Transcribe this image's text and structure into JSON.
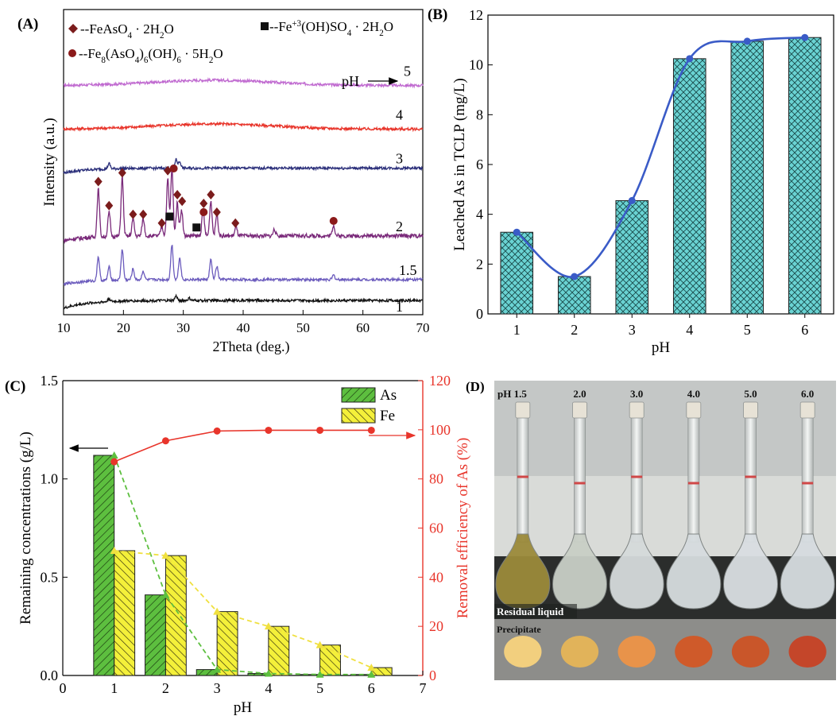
{
  "chart_data": [
    {
      "panel": "(A)",
      "type": "line",
      "title": "",
      "xlabel": "2Theta (deg.)",
      "ylabel": "Intensity (a.u.)",
      "xlim": [
        10,
        70
      ],
      "xticks": [
        10,
        20,
        30,
        40,
        50,
        60,
        70
      ],
      "legend": [
        {
          "marker": "diamond",
          "color": "#7b1c1c",
          "text": "--FeAsO",
          "sub": "4",
          "tail": " · 2H",
          "sub2": "2",
          "tail2": "O"
        },
        {
          "marker": "square",
          "color": "#111111",
          "text": "--Fe",
          "sup": "+3",
          "tail": "(OH)SO",
          "sub": "4",
          "tail2": " · 2H",
          "sub2": "2",
          "tail3": "O"
        },
        {
          "marker": "circle",
          "color": "#8b1a1a",
          "text": "--Fe",
          "sub": "8",
          "tail": "(AsO",
          "sub2": "4",
          "tail2": ")",
          "sub3": "6",
          "tail3": "(OH)",
          "sub4": "6",
          "tail4": " · 5H",
          "sub5": "2",
          "tail5": "O"
        }
      ],
      "arrow_label": "pH",
      "series": [
        {
          "name": "5",
          "color": "#c06ad0",
          "offset": 5.1,
          "peaks": []
        },
        {
          "name": "4",
          "color": "#e8352b",
          "offset": 4.1,
          "peaks": []
        },
        {
          "name": "3",
          "color": "#2b2f7a",
          "offset": 3.1,
          "peaks": [
            [
              17.6,
              0.12
            ],
            [
              28.8,
              0.2
            ],
            [
              29.4,
              0.15
            ]
          ]
        },
        {
          "name": "2",
          "color": "#7a2a7a",
          "offset": 1.55,
          "peaks": [
            [
              15.8,
              1.1
            ],
            [
              17.6,
              0.55
            ],
            [
              19.8,
              1.35
            ],
            [
              21.6,
              0.4
            ],
            [
              23.3,
              0.4
            ],
            [
              26.4,
              0.22
            ],
            [
              27.4,
              1.3
            ],
            [
              28.1,
              1.55
            ],
            [
              29.0,
              0.75
            ],
            [
              29.7,
              0.6
            ],
            [
              33.3,
              0.6
            ],
            [
              34.6,
              0.8
            ],
            [
              35.6,
              0.5
            ],
            [
              38.8,
              0.2
            ],
            [
              45.2,
              0.15
            ],
            [
              55.1,
              0.25
            ]
          ]
        },
        {
          "name": "1.5",
          "color": "#6b5bbd",
          "offset": 0.55,
          "peaks": [
            [
              15.8,
              0.55
            ],
            [
              17.6,
              0.3
            ],
            [
              19.8,
              0.7
            ],
            [
              21.6,
              0.25
            ],
            [
              23.3,
              0.2
            ],
            [
              28.1,
              0.8
            ],
            [
              29.4,
              0.5
            ],
            [
              34.6,
              0.45
            ],
            [
              35.6,
              0.3
            ],
            [
              55.1,
              0.1
            ]
          ]
        },
        {
          "name": "1",
          "color": "#111111",
          "offset": 0.0,
          "peaks": [
            [
              17.6,
              0.07
            ],
            [
              28.8,
              0.1
            ],
            [
              31.0,
              0.05
            ]
          ]
        }
      ],
      "annotations": {
        "diamonds": [
          [
            15.8,
            2.9
          ],
          [
            17.6,
            2.35
          ],
          [
            19.8,
            3.1
          ],
          [
            21.6,
            2.15
          ],
          [
            23.3,
            2.15
          ],
          [
            26.4,
            1.95
          ],
          [
            27.4,
            3.15
          ],
          [
            29.0,
            2.6
          ],
          [
            29.8,
            2.45
          ],
          [
            33.4,
            2.4
          ],
          [
            34.6,
            2.6
          ],
          [
            35.6,
            2.2
          ],
          [
            38.7,
            1.95
          ]
        ],
        "circles": [
          [
            28.4,
            3.2
          ],
          [
            33.4,
            2.2
          ],
          [
            55.1,
            2.0
          ]
        ],
        "squares": [
          [
            27.7,
            2.1
          ],
          [
            32.2,
            1.85
          ]
        ]
      }
    },
    {
      "panel": "(B)",
      "type": "bar",
      "title": "",
      "xlabel": "pH",
      "ylabel": "Leached As in TCLP (mg/L)",
      "categories": [
        "1",
        "2",
        "3",
        "4",
        "5",
        "6"
      ],
      "values": [
        3.28,
        1.5,
        4.55,
        10.25,
        10.95,
        11.1
      ],
      "ylim": [
        0,
        12
      ],
      "yticks": [
        0,
        2,
        4,
        6,
        8,
        10,
        12
      ],
      "bar_color": "#6ad3d3",
      "line_color": "#3a5bc7"
    },
    {
      "panel": "(C)",
      "type": "bar",
      "title": "",
      "xlabel": "pH",
      "ylabel": "Remaining concentrations (g/L)",
      "y2label": "Removal efficiency of As (%)",
      "xlim": [
        0,
        7
      ],
      "xticks": [
        0,
        1,
        2,
        3,
        4,
        5,
        6,
        7
      ],
      "ylim": [
        0,
        1.5
      ],
      "yticks": [
        0.0,
        0.5,
        1.0,
        1.5
      ],
      "y2lim": [
        0,
        120
      ],
      "y2ticks": [
        0,
        20,
        40,
        60,
        80,
        100,
        120
      ],
      "categories": [
        1,
        2,
        3,
        4,
        5,
        6
      ],
      "series": [
        {
          "name": "As",
          "color": "#5dbf3f",
          "line_color": "#5dbf3f",
          "values": [
            1.12,
            0.41,
            0.03,
            0.01,
            0.005,
            0.005
          ]
        },
        {
          "name": "Fe",
          "color": "#f4f03a",
          "line_color": "#f0e040",
          "values": [
            0.635,
            0.61,
            0.325,
            0.25,
            0.155,
            0.04
          ]
        }
      ],
      "removal": {
        "color": "#e8352b",
        "x": [
          1,
          2,
          3,
          4,
          5,
          6
        ],
        "values": [
          87,
          95.5,
          99.5,
          99.8,
          99.8,
          99.8
        ]
      },
      "legend_position": "top-right"
    },
    {
      "panel": "(D)",
      "type": "image",
      "labels": [
        "pH 1.5",
        "2.0",
        "3.0",
        "4.0",
        "5.0",
        "6.0"
      ],
      "residual_label": "Residual liquid",
      "precipitate_label": "Precipitate",
      "liquid_colors": [
        "#9b8a3a",
        "#c9cfc6",
        "#d5dadb",
        "#d6dcdf",
        "#d9dee2",
        "#d6dce0"
      ],
      "precipitate_colors": [
        "#f2cf7e",
        "#e1b35a",
        "#e8934a",
        "#cf5a2a",
        "#c9562a",
        "#c4462a"
      ]
    }
  ]
}
